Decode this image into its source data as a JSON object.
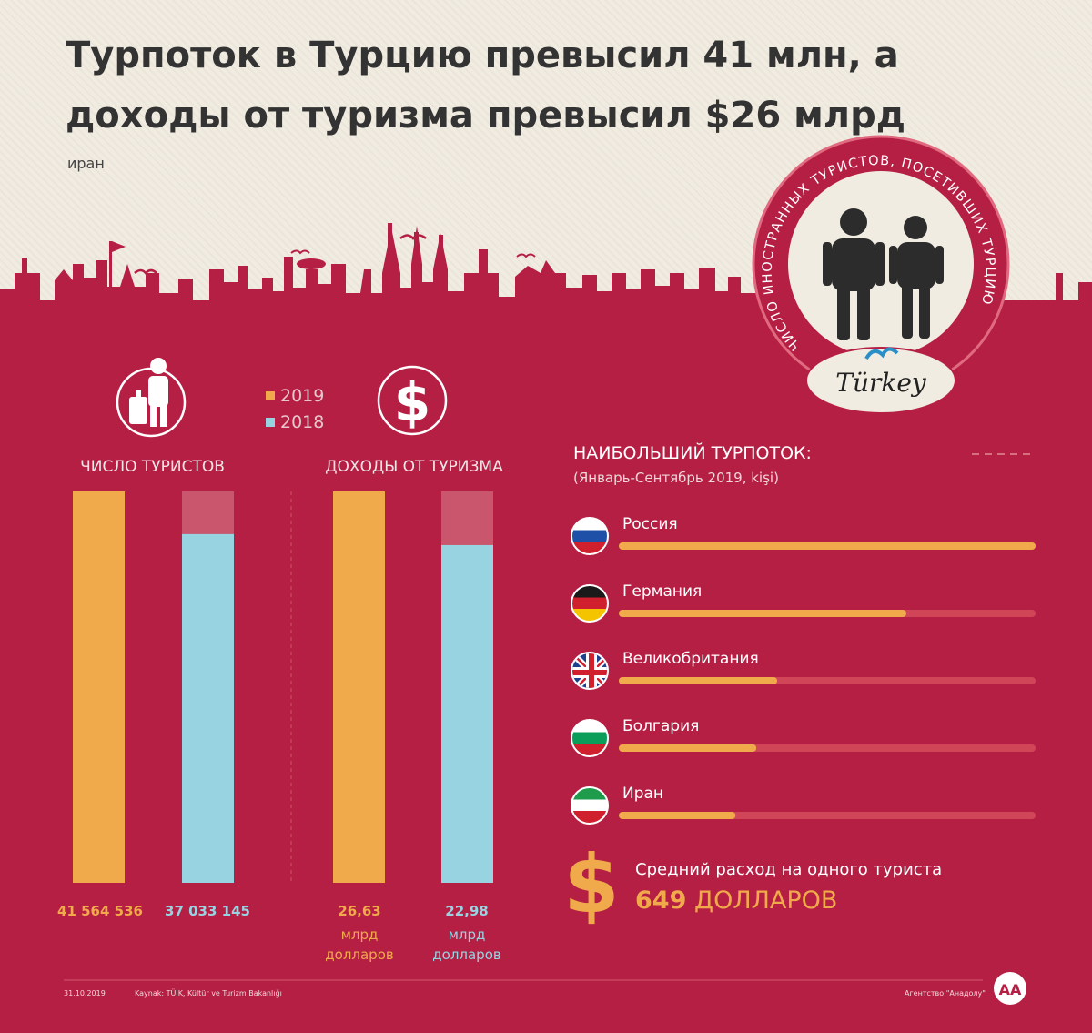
{
  "title": "Турпоток в Турцию превысил 41 млн, а доходы от туризма превысил $26 млрд",
  "subtitle": "иран",
  "badge": {
    "ring_text": "ЧИСЛО ИНОСТРАННЫХ ТУРИСТОВ, ПОСЕТИВШИХ ТУРЦИЮ",
    "logo_text": "Türkey"
  },
  "legend": [
    {
      "label": "2019",
      "color": "#f0a94b"
    },
    {
      "label": "2018",
      "color": "#98d3e2"
    }
  ],
  "colors": {
    "background_top": "#f1ece1",
    "crimson": "#b61f44",
    "bar_2019": "#f0a94b",
    "bar_2018": "#98d3e2",
    "track": "#d04558"
  },
  "icons": [
    "traveler-luggage-icon",
    "dollar-coin-icon",
    "backpackers-icon",
    "dollar-sign-icon",
    "aa-logo-icon"
  ],
  "chart_data": [
    {
      "type": "bar",
      "title": "ЧИСЛО ТУРИСТОВ",
      "categories": [
        "2019",
        "2018"
      ],
      "values": [
        41564536,
        37033145
      ],
      "labels": [
        "41 564 536",
        "37 033 145"
      ],
      "unit": ""
    },
    {
      "type": "bar",
      "title": "ДОХОДЫ ОТ ТУРИЗМА",
      "categories": [
        "2019",
        "2018"
      ],
      "values": [
        26.63,
        22.98
      ],
      "labels": [
        "26,63",
        "22,98"
      ],
      "unit": "млрд долларов"
    },
    {
      "type": "bar",
      "orientation": "horizontal",
      "title": "НАИБОЛЬШИЙ ТУРПОТОК:",
      "subtitle": "(Январь-Сентябрь 2019, kişi)",
      "categories": [
        "Россия",
        "Германия",
        "Великобритания",
        "Болгария",
        "Иран"
      ],
      "values": [
        1.0,
        0.69,
        0.38,
        0.33,
        0.28
      ]
    }
  ],
  "spending": {
    "label": "Средний расход на одного туриста",
    "amount": "649",
    "currency": "ДОЛЛАРОВ"
  },
  "footer": {
    "date": "31.10.2019",
    "source": "Kaynak: TÜİK, Kültür ve Turizm Bakanlığı",
    "agency": "Агентство \"Анадолу\""
  }
}
